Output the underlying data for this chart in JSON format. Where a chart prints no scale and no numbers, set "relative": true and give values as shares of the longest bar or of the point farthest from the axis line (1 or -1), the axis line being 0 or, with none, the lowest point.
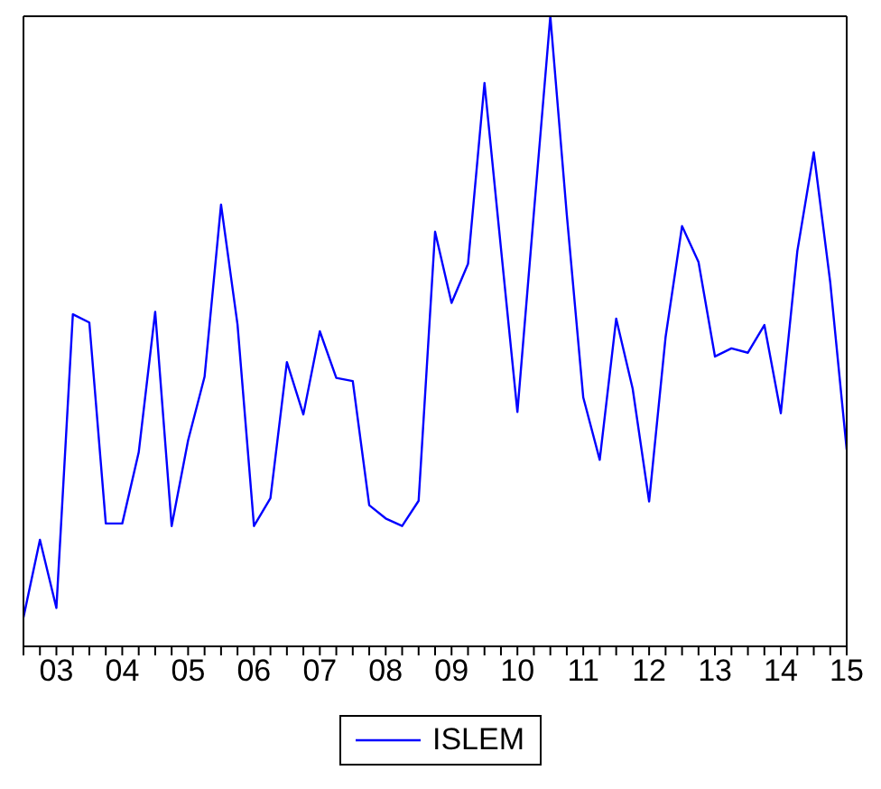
{
  "chart_data": {
    "type": "line",
    "relative": true,
    "legend": "bottom",
    "marker": "none",
    "line_style": "solid",
    "categories": [
      null,
      null,
      "03",
      null,
      null,
      null,
      "04",
      null,
      null,
      null,
      "05",
      null,
      null,
      null,
      "06",
      null,
      null,
      null,
      "07",
      null,
      null,
      null,
      "08",
      null,
      null,
      null,
      "09",
      null,
      null,
      null,
      "10",
      null,
      null,
      null,
      "11",
      null,
      null,
      null,
      "12",
      null,
      null,
      null,
      "13",
      null,
      null,
      null,
      "14",
      null,
      null,
      null,
      "15"
    ],
    "series": [
      {
        "name": "ISLEM",
        "color": "#0000ff",
        "values": [
          0.046,
          0.169,
          0.061,
          0.527,
          0.514,
          0.195,
          0.195,
          0.308,
          0.531,
          0.191,
          0.327,
          0.428,
          0.701,
          0.511,
          0.191,
          0.235,
          0.451,
          0.368,
          0.5,
          0.426,
          0.421,
          0.224,
          0.203,
          0.191,
          0.231,
          0.658,
          0.545,
          0.607,
          0.894,
          0.632,
          0.372,
          0.688,
          1,
          0.685,
          0.395,
          0.296,
          0.52,
          0.409,
          0.23,
          0.491,
          0.667,
          0.61,
          0.46,
          0.473,
          0.466,
          0.51,
          0.37,
          0.627,
          0.784,
          0.578,
          0.312
        ]
      }
    ]
  }
}
